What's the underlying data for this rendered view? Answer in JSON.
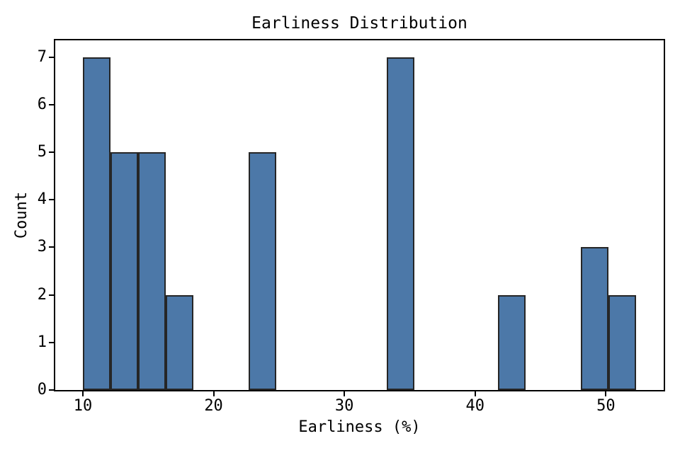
{
  "chart_data": {
    "type": "bar",
    "subtype": "histogram",
    "title": "Earliness Distribution",
    "xlabel": "Earliness (%)",
    "ylabel": "Count",
    "bins": {
      "start": 10,
      "width": 2.115,
      "count": 20
    },
    "bin_counts": [
      7,
      5,
      5,
      2,
      0,
      0,
      5,
      0,
      0,
      0,
      0,
      7,
      0,
      0,
      0,
      2,
      0,
      0,
      3,
      2
    ],
    "xticks": [
      10,
      20,
      30,
      40,
      50
    ],
    "yticks": [
      0,
      1,
      2,
      3,
      4,
      5,
      6,
      7
    ],
    "xlim": [
      7.89,
      54.42
    ],
    "ylim": [
      0,
      7.35
    ],
    "grid": false,
    "legend_position": "none",
    "colors": {
      "bar_fill": "#4c78a8",
      "bar_edge": "#262626",
      "spine": "#000000",
      "text": "#000000",
      "background": "#ffffff"
    }
  }
}
